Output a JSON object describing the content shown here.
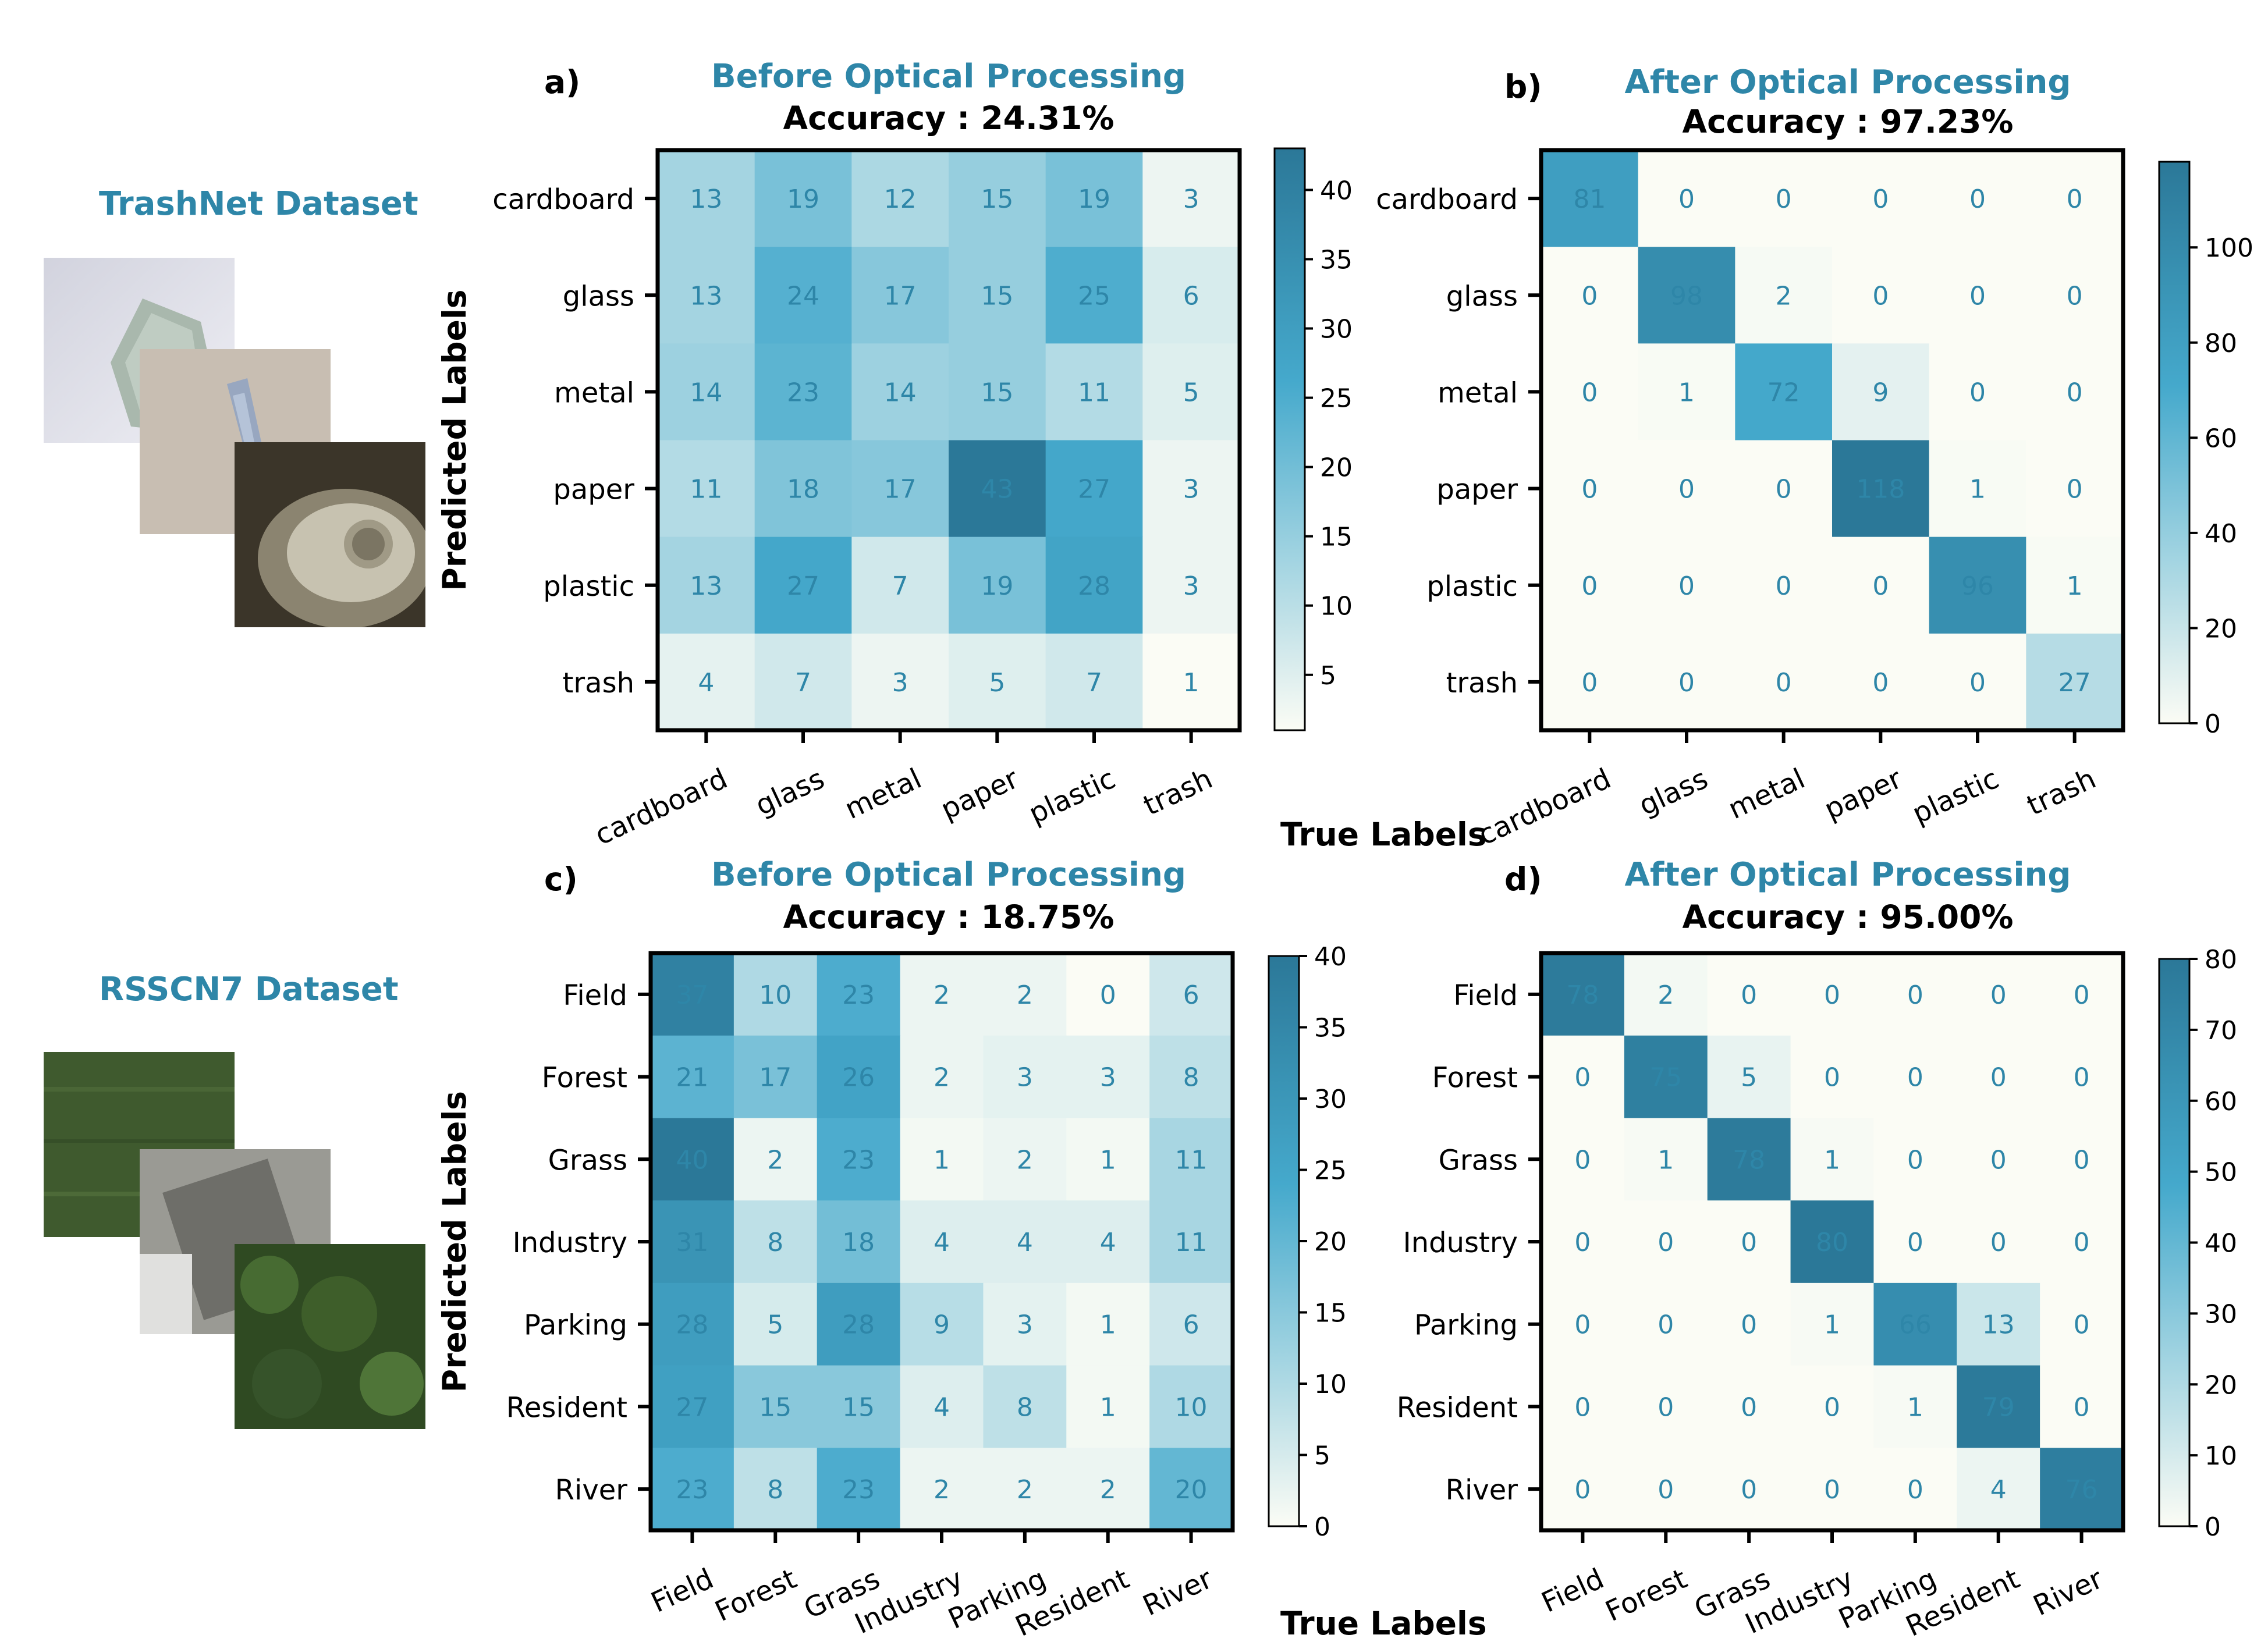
{
  "datasets": [
    {
      "title": "TrashNet Dataset"
    },
    {
      "title": "RSSCN7 Dataset"
    }
  ],
  "colors": {
    "title_blue": "#2e86a8",
    "cmap_low": "#fbfcf5",
    "cmap_mid": "#45a9cc",
    "cmap_high": "#2b7898",
    "cell_text": "#2e86a8"
  },
  "chart_data": [
    {
      "type": "heatmap",
      "panel_label": "a)",
      "title": "Before Optical Processing",
      "subtitle": "Accuracy : 24.31%",
      "ylabel": "Predicted Labels",
      "xlabel": "",
      "categories": [
        "cardboard",
        "glass",
        "metal",
        "paper",
        "plastic",
        "trash"
      ],
      "matrix": [
        [
          13,
          19,
          12,
          15,
          19,
          3
        ],
        [
          13,
          24,
          17,
          15,
          25,
          6
        ],
        [
          14,
          23,
          14,
          15,
          11,
          5
        ],
        [
          11,
          18,
          17,
          43,
          27,
          3
        ],
        [
          13,
          27,
          7,
          19,
          28,
          3
        ],
        [
          4,
          7,
          3,
          5,
          7,
          1
        ]
      ],
      "colorbar": {
        "min": 1,
        "max": 43,
        "ticks": [
          5,
          10,
          15,
          20,
          25,
          30,
          35,
          40
        ]
      }
    },
    {
      "type": "heatmap",
      "panel_label": "b)",
      "title": "After Optical Processing",
      "subtitle": "Accuracy : 97.23%",
      "ylabel": "",
      "xlabel": "True Labels",
      "categories": [
        "cardboard",
        "glass",
        "metal",
        "paper",
        "plastic",
        "trash"
      ],
      "matrix": [
        [
          81,
          0,
          0,
          0,
          0,
          0
        ],
        [
          0,
          98,
          2,
          0,
          0,
          0
        ],
        [
          0,
          1,
          72,
          9,
          0,
          0
        ],
        [
          0,
          0,
          0,
          118,
          1,
          0
        ],
        [
          0,
          0,
          0,
          0,
          96,
          1
        ],
        [
          0,
          0,
          0,
          0,
          0,
          27
        ]
      ],
      "colorbar": {
        "min": 0,
        "max": 118,
        "ticks": [
          0,
          20,
          40,
          60,
          80,
          100
        ]
      }
    },
    {
      "type": "heatmap",
      "panel_label": "c)",
      "title": "Before Optical Processing",
      "subtitle": "Accuracy : 18.75%",
      "ylabel": "Predicted Labels",
      "xlabel": "",
      "categories": [
        "Field",
        "Forest",
        "Grass",
        "Industry",
        "Parking",
        "Resident",
        "River"
      ],
      "matrix": [
        [
          37,
          10,
          23,
          2,
          2,
          0,
          6
        ],
        [
          21,
          17,
          26,
          2,
          3,
          3,
          8
        ],
        [
          40,
          2,
          23,
          1,
          2,
          1,
          11
        ],
        [
          31,
          8,
          18,
          4,
          4,
          4,
          11
        ],
        [
          28,
          5,
          28,
          9,
          3,
          1,
          6
        ],
        [
          27,
          15,
          15,
          4,
          8,
          1,
          10
        ],
        [
          23,
          8,
          23,
          2,
          2,
          2,
          20
        ]
      ],
      "colorbar": {
        "min": 0,
        "max": 40,
        "ticks": [
          0,
          5,
          10,
          15,
          20,
          25,
          30,
          35,
          40
        ]
      }
    },
    {
      "type": "heatmap",
      "panel_label": "d)",
      "title": "After Optical Processing",
      "subtitle": "Accuracy : 95.00%",
      "ylabel": "",
      "xlabel": "True Labels",
      "categories": [
        "Field",
        "Forest",
        "Grass",
        "Industry",
        "Parking",
        "Resident",
        "River"
      ],
      "matrix": [
        [
          78,
          2,
          0,
          0,
          0,
          0,
          0
        ],
        [
          0,
          75,
          5,
          0,
          0,
          0,
          0
        ],
        [
          0,
          1,
          78,
          1,
          0,
          0,
          0
        ],
        [
          0,
          0,
          0,
          80,
          0,
          0,
          0
        ],
        [
          0,
          0,
          0,
          1,
          66,
          13,
          0
        ],
        [
          0,
          0,
          0,
          0,
          1,
          79,
          0
        ],
        [
          0,
          0,
          0,
          0,
          0,
          4,
          76
        ]
      ],
      "colorbar": {
        "min": 0,
        "max": 80,
        "ticks": [
          0,
          10,
          20,
          30,
          40,
          50,
          60,
          70,
          80
        ]
      }
    }
  ]
}
